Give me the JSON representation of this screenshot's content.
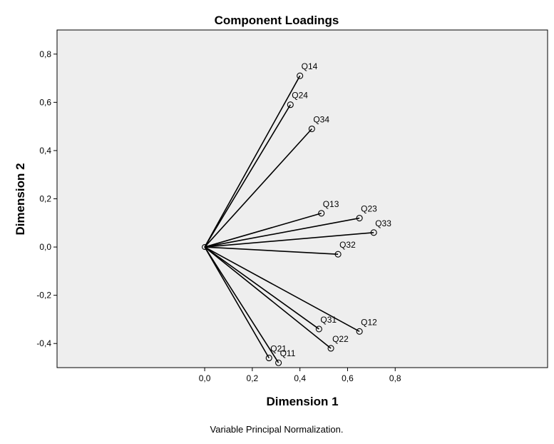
{
  "chart_data": {
    "type": "scatter",
    "title": "Component Loadings",
    "xlabel": "Dimension 1",
    "ylabel": "Dimension 2",
    "footnote": "Variable Principal Normalization.",
    "xlim": [
      -0.62,
      1.44
    ],
    "ylim": [
      -0.5,
      0.9
    ],
    "xticks": [
      "0,0",
      "0,2",
      "0,4",
      "0,6",
      "0,8"
    ],
    "xtick_values": [
      0.0,
      0.2,
      0.4,
      0.6,
      0.8
    ],
    "yticks": [
      "-0,4",
      "-0,2",
      "0,0",
      "0,2",
      "0,4",
      "0,6",
      "0,8"
    ],
    "ytick_values": [
      -0.4,
      -0.2,
      0.0,
      0.2,
      0.4,
      0.6,
      0.8
    ],
    "grid": false,
    "vectors_from_origin": true,
    "points": [
      {
        "label": "Q14",
        "x": 0.4,
        "y": 0.71
      },
      {
        "label": "Q24",
        "x": 0.36,
        "y": 0.59
      },
      {
        "label": "Q34",
        "x": 0.45,
        "y": 0.49
      },
      {
        "label": "Q13",
        "x": 0.49,
        "y": 0.14
      },
      {
        "label": "Q23",
        "x": 0.65,
        "y": 0.12
      },
      {
        "label": "Q33",
        "x": 0.71,
        "y": 0.06
      },
      {
        "label": "Q32",
        "x": 0.56,
        "y": -0.03
      },
      {
        "label": "Q31",
        "x": 0.48,
        "y": -0.34
      },
      {
        "label": "Q12",
        "x": 0.65,
        "y": -0.35
      },
      {
        "label": "Q22",
        "x": 0.53,
        "y": -0.42
      },
      {
        "label": "Q21",
        "x": 0.27,
        "y": -0.46
      },
      {
        "label": "Q11",
        "x": 0.31,
        "y": -0.48
      }
    ],
    "colors": {
      "plot_background": "#eeeeee",
      "frame": "#000000",
      "vector": "#000000",
      "page": "#ffffff"
    }
  }
}
